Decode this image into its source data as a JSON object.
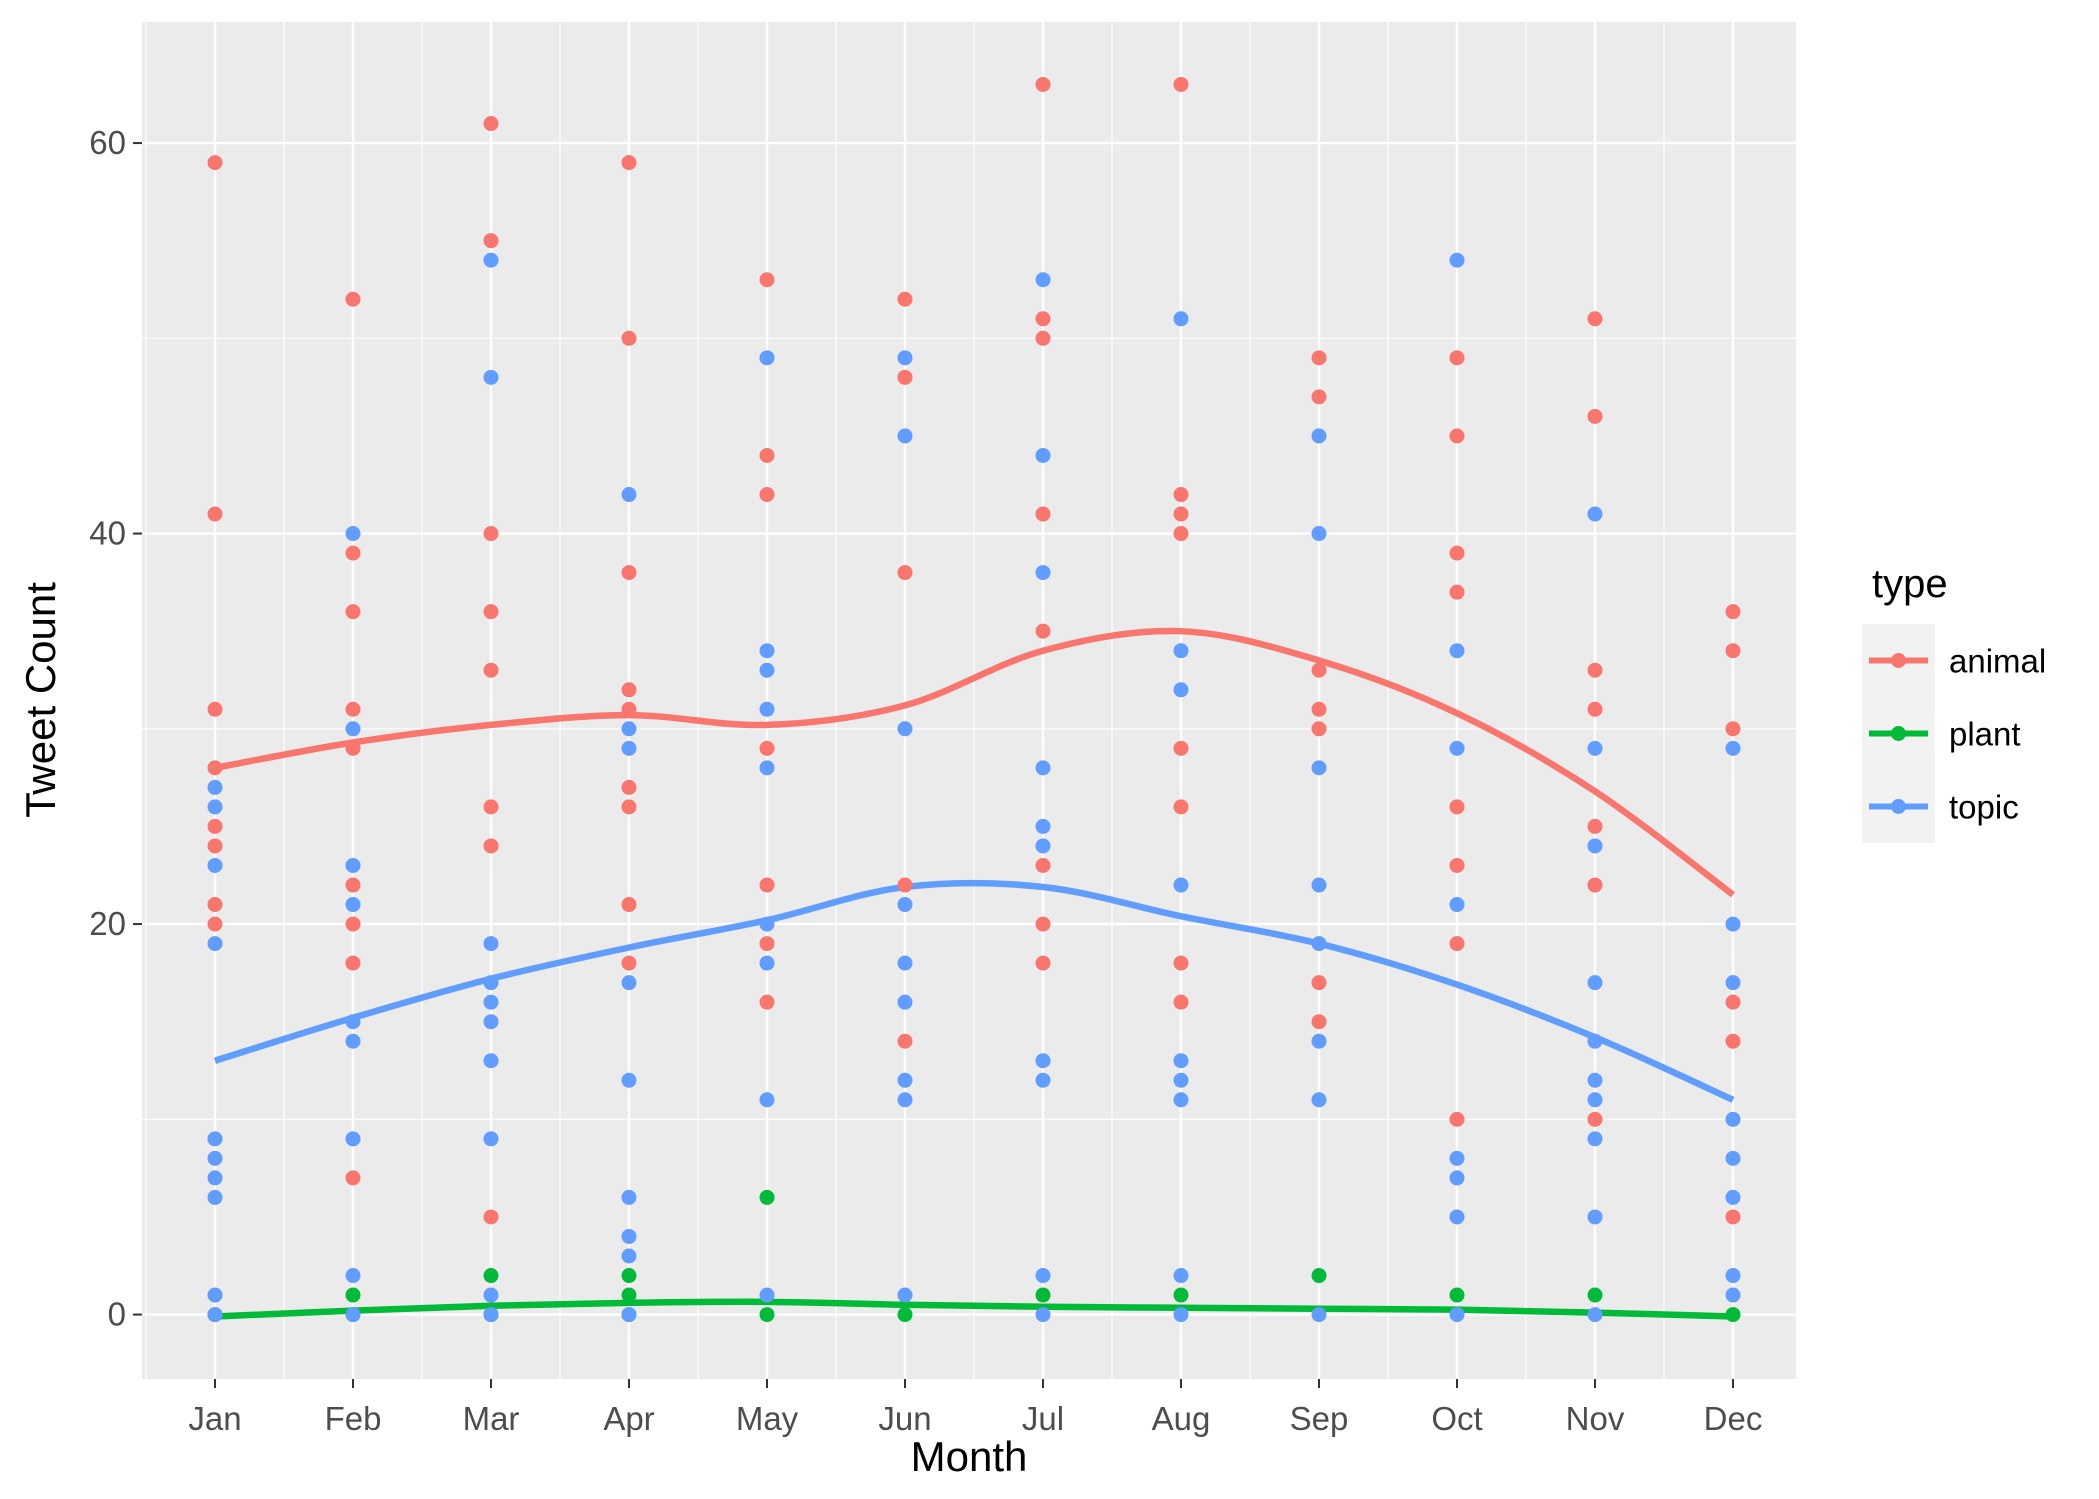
{
  "chart_data": {
    "type": "scatter",
    "title": "",
    "xlabel": "Month",
    "ylabel": "Tweet Count",
    "categories": [
      "Jan",
      "Feb",
      "Mar",
      "Apr",
      "May",
      "Jun",
      "Jul",
      "Aug",
      "Sep",
      "Oct",
      "Nov",
      "Dec"
    ],
    "ylim": [
      -3.3,
      66.2
    ],
    "yticks": [
      0,
      20,
      40,
      60
    ],
    "grid": true,
    "legend": {
      "title": "type",
      "position": "right"
    },
    "series": [
      {
        "name": "animal",
        "color": "#F8766D",
        "points": [
          [
            "Jan",
            59
          ],
          [
            "Jan",
            41
          ],
          [
            "Jan",
            31
          ],
          [
            "Jan",
            28
          ],
          [
            "Jan",
            25
          ],
          [
            "Jan",
            24
          ],
          [
            "Jan",
            21
          ],
          [
            "Jan",
            20
          ],
          [
            "Feb",
            52
          ],
          [
            "Feb",
            39
          ],
          [
            "Feb",
            36
          ],
          [
            "Feb",
            31
          ],
          [
            "Feb",
            29
          ],
          [
            "Feb",
            22
          ],
          [
            "Feb",
            20
          ],
          [
            "Feb",
            18
          ],
          [
            "Feb",
            7
          ],
          [
            "Mar",
            61
          ],
          [
            "Mar",
            55
          ],
          [
            "Mar",
            40
          ],
          [
            "Mar",
            36
          ],
          [
            "Mar",
            33
          ],
          [
            "Mar",
            26
          ],
          [
            "Mar",
            24
          ],
          [
            "Mar",
            5
          ],
          [
            "Apr",
            59
          ],
          [
            "Apr",
            50
          ],
          [
            "Apr",
            38
          ],
          [
            "Apr",
            32
          ],
          [
            "Apr",
            31
          ],
          [
            "Apr",
            27
          ],
          [
            "Apr",
            26
          ],
          [
            "Apr",
            21
          ],
          [
            "Apr",
            18
          ],
          [
            "May",
            53
          ],
          [
            "May",
            44
          ],
          [
            "May",
            42
          ],
          [
            "May",
            29
          ],
          [
            "May",
            22
          ],
          [
            "May",
            19
          ],
          [
            "May",
            16
          ],
          [
            "Jun",
            52
          ],
          [
            "Jun",
            48
          ],
          [
            "Jun",
            38
          ],
          [
            "Jun",
            22
          ],
          [
            "Jun",
            14
          ],
          [
            "Jul",
            63
          ],
          [
            "Jul",
            51
          ],
          [
            "Jul",
            50
          ],
          [
            "Jul",
            41
          ],
          [
            "Jul",
            35
          ],
          [
            "Jul",
            23
          ],
          [
            "Jul",
            20
          ],
          [
            "Jul",
            18
          ],
          [
            "Aug",
            63
          ],
          [
            "Aug",
            42
          ],
          [
            "Aug",
            41
          ],
          [
            "Aug",
            40
          ],
          [
            "Aug",
            29
          ],
          [
            "Aug",
            26
          ],
          [
            "Aug",
            18
          ],
          [
            "Aug",
            16
          ],
          [
            "Sep",
            49
          ],
          [
            "Sep",
            47
          ],
          [
            "Sep",
            33
          ],
          [
            "Sep",
            31
          ],
          [
            "Sep",
            30
          ],
          [
            "Sep",
            17
          ],
          [
            "Sep",
            15
          ],
          [
            "Oct",
            49
          ],
          [
            "Oct",
            45
          ],
          [
            "Oct",
            39
          ],
          [
            "Oct",
            37
          ],
          [
            "Oct",
            26
          ],
          [
            "Oct",
            23
          ],
          [
            "Oct",
            19
          ],
          [
            "Oct",
            10
          ],
          [
            "Nov",
            51
          ],
          [
            "Nov",
            46
          ],
          [
            "Nov",
            33
          ],
          [
            "Nov",
            31
          ],
          [
            "Nov",
            25
          ],
          [
            "Nov",
            22
          ],
          [
            "Nov",
            10
          ],
          [
            "Dec",
            36
          ],
          [
            "Dec",
            34
          ],
          [
            "Dec",
            30
          ],
          [
            "Dec",
            16
          ],
          [
            "Dec",
            14
          ],
          [
            "Dec",
            5
          ]
        ],
        "smooth": [
          [
            "Jan",
            28
          ],
          [
            "Feb",
            29.3
          ],
          [
            "Mar",
            30.2
          ],
          [
            "Apr",
            30.7
          ],
          [
            "May",
            30.2
          ],
          [
            "Jun",
            31.2
          ],
          [
            "Jul",
            34
          ],
          [
            "Aug",
            35
          ],
          [
            "Sep",
            33.5
          ],
          [
            "Oct",
            30.8
          ],
          [
            "Nov",
            26.8
          ],
          [
            "Dec",
            21.5
          ]
        ]
      },
      {
        "name": "plant",
        "color": "#00BA38",
        "points": [
          [
            "Jan",
            0
          ],
          [
            "Feb",
            1
          ],
          [
            "Feb",
            0
          ],
          [
            "Mar",
            2
          ],
          [
            "Mar",
            0
          ],
          [
            "Apr",
            2
          ],
          [
            "Apr",
            1
          ],
          [
            "Apr",
            0
          ],
          [
            "May",
            6
          ],
          [
            "May",
            0
          ],
          [
            "Jun",
            0
          ],
          [
            "Jul",
            1
          ],
          [
            "Aug",
            1
          ],
          [
            "Sep",
            2
          ],
          [
            "Oct",
            1
          ],
          [
            "Nov",
            1
          ],
          [
            "Dec",
            0
          ]
        ],
        "smooth": [
          [
            "Jan",
            -0.1
          ],
          [
            "Feb",
            0.2
          ],
          [
            "Mar",
            0.45
          ],
          [
            "Apr",
            0.6
          ],
          [
            "May",
            0.65
          ],
          [
            "Jun",
            0.5
          ],
          [
            "Jul",
            0.4
          ],
          [
            "Aug",
            0.35
          ],
          [
            "Sep",
            0.3
          ],
          [
            "Oct",
            0.25
          ],
          [
            "Nov",
            0.1
          ],
          [
            "Dec",
            -0.1
          ]
        ]
      },
      {
        "name": "topic",
        "color": "#619CFF",
        "points": [
          [
            "Jan",
            27
          ],
          [
            "Jan",
            26
          ],
          [
            "Jan",
            23
          ],
          [
            "Jan",
            19
          ],
          [
            "Jan",
            9
          ],
          [
            "Jan",
            8
          ],
          [
            "Jan",
            7
          ],
          [
            "Jan",
            6
          ],
          [
            "Jan",
            1
          ],
          [
            "Jan",
            0
          ],
          [
            "Feb",
            40
          ],
          [
            "Feb",
            30
          ],
          [
            "Feb",
            23
          ],
          [
            "Feb",
            21
          ],
          [
            "Feb",
            15
          ],
          [
            "Feb",
            14
          ],
          [
            "Feb",
            9
          ],
          [
            "Feb",
            2
          ],
          [
            "Feb",
            0
          ],
          [
            "Mar",
            54
          ],
          [
            "Mar",
            48
          ],
          [
            "Mar",
            19
          ],
          [
            "Mar",
            17
          ],
          [
            "Mar",
            16
          ],
          [
            "Mar",
            15
          ],
          [
            "Mar",
            13
          ],
          [
            "Mar",
            9
          ],
          [
            "Mar",
            1
          ],
          [
            "Mar",
            0
          ],
          [
            "Apr",
            42
          ],
          [
            "Apr",
            30
          ],
          [
            "Apr",
            29
          ],
          [
            "Apr",
            17
          ],
          [
            "Apr",
            12
          ],
          [
            "Apr",
            6
          ],
          [
            "Apr",
            4
          ],
          [
            "Apr",
            3
          ],
          [
            "Apr",
            0
          ],
          [
            "May",
            49
          ],
          [
            "May",
            34
          ],
          [
            "May",
            33
          ],
          [
            "May",
            31
          ],
          [
            "May",
            28
          ],
          [
            "May",
            20
          ],
          [
            "May",
            18
          ],
          [
            "May",
            11
          ],
          [
            "May",
            1
          ],
          [
            "Jun",
            49
          ],
          [
            "Jun",
            45
          ],
          [
            "Jun",
            30
          ],
          [
            "Jun",
            21
          ],
          [
            "Jun",
            18
          ],
          [
            "Jun",
            16
          ],
          [
            "Jun",
            12
          ],
          [
            "Jun",
            11
          ],
          [
            "Jun",
            1
          ],
          [
            "Jul",
            53
          ],
          [
            "Jul",
            44
          ],
          [
            "Jul",
            38
          ],
          [
            "Jul",
            28
          ],
          [
            "Jul",
            25
          ],
          [
            "Jul",
            24
          ],
          [
            "Jul",
            13
          ],
          [
            "Jul",
            12
          ],
          [
            "Jul",
            2
          ],
          [
            "Jul",
            0
          ],
          [
            "Aug",
            51
          ],
          [
            "Aug",
            34
          ],
          [
            "Aug",
            32
          ],
          [
            "Aug",
            22
          ],
          [
            "Aug",
            13
          ],
          [
            "Aug",
            12
          ],
          [
            "Aug",
            11
          ],
          [
            "Aug",
            2
          ],
          [
            "Aug",
            0
          ],
          [
            "Sep",
            45
          ],
          [
            "Sep",
            40
          ],
          [
            "Sep",
            28
          ],
          [
            "Sep",
            22
          ],
          [
            "Sep",
            19
          ],
          [
            "Sep",
            14
          ],
          [
            "Sep",
            11
          ],
          [
            "Sep",
            0
          ],
          [
            "Oct",
            54
          ],
          [
            "Oct",
            34
          ],
          [
            "Oct",
            29
          ],
          [
            "Oct",
            21
          ],
          [
            "Oct",
            8
          ],
          [
            "Oct",
            7
          ],
          [
            "Oct",
            5
          ],
          [
            "Oct",
            0
          ],
          [
            "Nov",
            41
          ],
          [
            "Nov",
            29
          ],
          [
            "Nov",
            24
          ],
          [
            "Nov",
            17
          ],
          [
            "Nov",
            14
          ],
          [
            "Nov",
            12
          ],
          [
            "Nov",
            11
          ],
          [
            "Nov",
            9
          ],
          [
            "Nov",
            5
          ],
          [
            "Nov",
            0
          ],
          [
            "Dec",
            29
          ],
          [
            "Dec",
            20
          ],
          [
            "Dec",
            17
          ],
          [
            "Dec",
            10
          ],
          [
            "Dec",
            8
          ],
          [
            "Dec",
            6
          ],
          [
            "Dec",
            2
          ],
          [
            "Dec",
            1
          ]
        ],
        "smooth": [
          [
            "Jan",
            13
          ],
          [
            "Feb",
            15.2
          ],
          [
            "Mar",
            17.2
          ],
          [
            "Apr",
            18.8
          ],
          [
            "May",
            20.2
          ],
          [
            "Jun",
            21.9
          ],
          [
            "Jul",
            21.9
          ],
          [
            "Aug",
            20.4
          ],
          [
            "Sep",
            19
          ],
          [
            "Oct",
            16.9
          ],
          [
            "Nov",
            14.2
          ],
          [
            "Dec",
            11
          ]
        ]
      }
    ],
    "colors": {
      "panel": "#EBEBEB",
      "grid": "#FFFFFF",
      "tick": "#333333"
    }
  }
}
